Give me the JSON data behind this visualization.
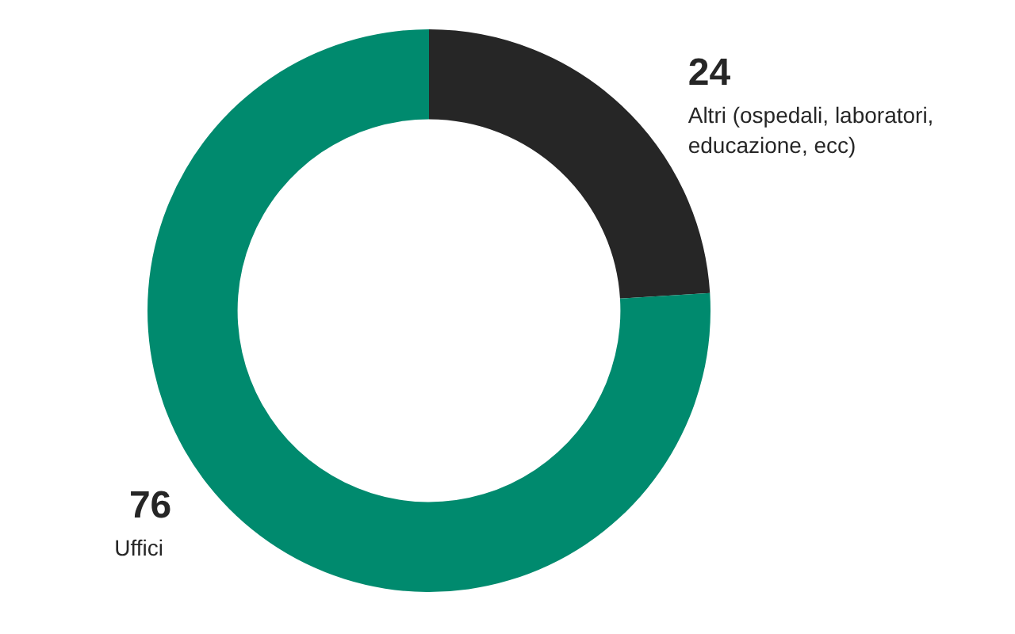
{
  "chart_data": {
    "type": "donut",
    "categories": [
      "Altri (ospedali, laboratori, educazione, ecc)",
      "Uffici"
    ],
    "values": [
      24,
      76
    ],
    "colors": [
      "#262626",
      "#008a6e"
    ],
    "data_labels": true,
    "legend": false
  }
}
